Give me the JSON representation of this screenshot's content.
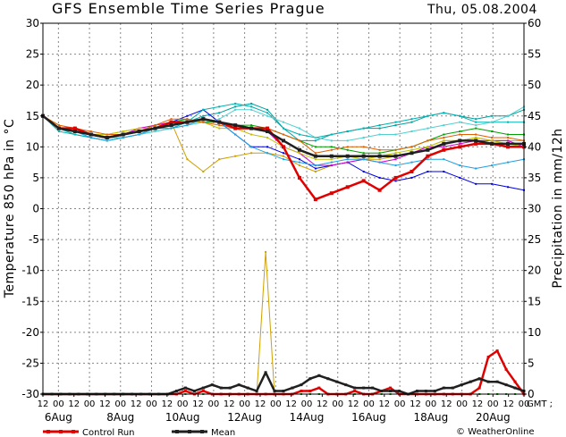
{
  "header": {
    "title": "GFS Ensemble Time Series Prague",
    "date": "Thu, 05.08.2004"
  },
  "chart_data": {
    "type": "line",
    "title": "GFS Ensemble Time Series Prague",
    "ylabel_left": "Temperature 850 hPa in °C",
    "ylabel_right": "Precipitation in mm/12h",
    "ylim_left": [
      -30,
      30
    ],
    "ylim_right": [
      0,
      60
    ],
    "yticks_left": [
      30,
      25,
      20,
      15,
      10,
      5,
      0,
      -5,
      -10,
      -15,
      -20,
      -25,
      -30
    ],
    "yticks_right": [
      60,
      55,
      50,
      45,
      40,
      35,
      30,
      25,
      20,
      15,
      10,
      5,
      0
    ],
    "x_hour_labels": [
      "12",
      "00",
      "12",
      "00",
      "12",
      "00",
      "12",
      "00",
      "12",
      "00",
      "12",
      "00",
      "12",
      "00",
      "12",
      "00",
      "12",
      "00",
      "12",
      "00",
      "12",
      "00",
      "12",
      "00",
      "12",
      "00",
      "12",
      "00",
      "12",
      "00",
      "12",
      "00"
    ],
    "x_end_label": "GMT ;",
    "x_date_labels": [
      "6Aug",
      "8Aug",
      "10Aug",
      "12Aug",
      "14Aug",
      "16Aug",
      "18Aug",
      "20Aug"
    ],
    "grid": true,
    "legend_position": "bottom-left",
    "credit": "© WeatherOnline",
    "temperature": {
      "control": {
        "name": "Control Run",
        "color": "#e00000",
        "values": [
          15,
          13,
          13,
          12,
          11.5,
          12,
          12.5,
          13,
          14,
          14,
          14.5,
          14,
          13,
          13,
          13,
          10,
          5,
          1.5,
          2.5,
          3.5,
          4.5,
          3,
          5,
          6,
          8.5,
          9.5,
          10,
          10.5,
          10.5,
          10,
          10
        ]
      },
      "mean": {
        "name": "Mean",
        "color": "#202020",
        "values": [
          15,
          13,
          12.5,
          12,
          11.5,
          12,
          12.5,
          13,
          13.5,
          14,
          14.5,
          14,
          13.5,
          13,
          12.5,
          11,
          9.5,
          8.5,
          8.5,
          8.5,
          8.5,
          8.5,
          8.5,
          9,
          9.5,
          10.5,
          11,
          11,
          10.5,
          10.5,
          10.5
        ]
      },
      "members": [
        {
          "color": "#00a0a0",
          "values": [
            15,
            13,
            12,
            11.5,
            11,
            11.5,
            12,
            13,
            13.5,
            14,
            15,
            15.5,
            16.5,
            17,
            16,
            13,
            11,
            11,
            12,
            12.5,
            13,
            13,
            13.5,
            14,
            15,
            15.5,
            15,
            14.5,
            15,
            15,
            16
          ]
        },
        {
          "color": "#d0a000",
          "values": [
            15,
            13,
            13,
            12,
            12,
            12.5,
            13,
            13.5,
            14,
            8,
            6,
            8,
            8.5,
            9,
            9,
            8.5,
            7,
            6,
            7,
            7.5,
            8,
            8,
            8.5,
            9,
            10,
            11,
            11,
            11.5,
            11,
            11,
            11
          ]
        },
        {
          "color": "#00a000",
          "values": [
            15,
            13,
            12.5,
            12,
            11.5,
            12,
            12.5,
            13,
            14,
            14.5,
            14,
            14,
            13.5,
            13.5,
            13,
            12,
            11,
            10,
            10,
            9.5,
            9,
            9,
            9.5,
            10,
            11,
            12,
            12.5,
            13,
            12.5,
            12,
            12
          ]
        },
        {
          "color": "#0000e0",
          "values": [
            15,
            13,
            12.5,
            12,
            11.5,
            12,
            12.5,
            13,
            14,
            15,
            16,
            14,
            12,
            10,
            10,
            9,
            8,
            6.5,
            7,
            7.5,
            6,
            5,
            4.5,
            5,
            6,
            6,
            5,
            4,
            4,
            3.5,
            3
          ]
        },
        {
          "color": "#d000d0",
          "values": [
            15,
            13,
            13,
            12,
            11.5,
            12,
            13,
            13.5,
            14,
            14,
            14.5,
            14,
            13,
            13,
            12.5,
            10,
            9,
            7,
            7,
            7.5,
            8,
            7.5,
            8,
            9,
            10,
            10,
            10.5,
            11,
            11,
            11,
            10
          ]
        },
        {
          "color": "#c0c000",
          "values": [
            15,
            13.5,
            13,
            12,
            12,
            12.5,
            13,
            13,
            14,
            14,
            14,
            13,
            13,
            12,
            11.5,
            10,
            9,
            8,
            8,
            8.5,
            8,
            8.5,
            9,
            9.5,
            10,
            11,
            11,
            11.5,
            11,
            10.5,
            10
          ]
        },
        {
          "color": "#00b0b0",
          "values": [
            15,
            12.5,
            12,
            11.5,
            11,
            11.5,
            12,
            12.5,
            13,
            14,
            16,
            16.5,
            17,
            16.5,
            15.5,
            13,
            12,
            11.5,
            12,
            12.5,
            13,
            13.5,
            14,
            14.5,
            15,
            15.5,
            15,
            14,
            14,
            14,
            14
          ]
        },
        {
          "color": "#50d0d0",
          "values": [
            15,
            13,
            12.5,
            12,
            11.5,
            11.5,
            12,
            12.5,
            13,
            13.5,
            14,
            14.5,
            16,
            16,
            15,
            14,
            13,
            11.5,
            11,
            11,
            11.5,
            12,
            12,
            12.5,
            13,
            13.5,
            14,
            13.5,
            14,
            15,
            16.5
          ]
        },
        {
          "color": "#e06000",
          "values": [
            15,
            13.5,
            13,
            12.5,
            12,
            12,
            12.5,
            13.5,
            14.5,
            14.5,
            14,
            13.5,
            13,
            13,
            13,
            12,
            11,
            9,
            9.5,
            10,
            10,
            9.5,
            9.5,
            10,
            11,
            11.5,
            12,
            12,
            11.5,
            11.5,
            11
          ]
        },
        {
          "color": "#20a0e0",
          "values": [
            15,
            13,
            12.5,
            11.5,
            11,
            11.5,
            12,
            13,
            13,
            13.5,
            14.5,
            14,
            12,
            10,
            9,
            8,
            7.5,
            7,
            7.5,
            8,
            8,
            7.5,
            7,
            7.5,
            8,
            8,
            7,
            6.5,
            7,
            7.5,
            8
          ]
        }
      ]
    },
    "precipitation": {
      "control": {
        "name": "Control Run",
        "color": "#e00000",
        "values": [
          0,
          0,
          0,
          0,
          0,
          0,
          0,
          0,
          0,
          0,
          0,
          0,
          0,
          0,
          0,
          0,
          0.5,
          0,
          0.5,
          0,
          0,
          0,
          0,
          0,
          0,
          0,
          0,
          0,
          0,
          0.5,
          0.5,
          1,
          0,
          0,
          0,
          0.5,
          0,
          0,
          0.5,
          1,
          0,
          0,
          0,
          0,
          0,
          0,
          0,
          0,
          0,
          1,
          6,
          7,
          4,
          2,
          0
        ]
      },
      "mean": {
        "name": "Mean",
        "color": "#202020",
        "values": [
          0,
          0,
          0,
          0,
          0,
          0,
          0,
          0,
          0,
          0,
          0,
          0,
          0,
          0,
          0,
          0.5,
          1,
          0.5,
          1,
          1.5,
          1,
          1,
          1.5,
          1,
          0.5,
          3.5,
          0.5,
          0.5,
          1,
          1.5,
          2.5,
          3,
          2.5,
          2,
          1.5,
          1,
          1,
          1,
          0.5,
          0.5,
          0.5,
          0,
          0.5,
          0.5,
          0.5,
          1,
          1,
          1.5,
          2,
          2.5,
          2,
          2,
          1.5,
          1,
          0.5
        ]
      },
      "members": [
        {
          "color": "#d0a000",
          "values": [
            0,
            0,
            0,
            0,
            0,
            0,
            0,
            0,
            0,
            0,
            0,
            0,
            0,
            0,
            0,
            0,
            0,
            0,
            0,
            0,
            0,
            0,
            0,
            0,
            0,
            23,
            0,
            0,
            0,
            0,
            0,
            0,
            0,
            0,
            0,
            0,
            0,
            0,
            0,
            0,
            0,
            0,
            0,
            0,
            0,
            0,
            0,
            0,
            0,
            0,
            0,
            0,
            0,
            0,
            0
          ]
        },
        {
          "color": "#00a0d0",
          "values": [
            0,
            0,
            0,
            0,
            0,
            0,
            0,
            0,
            0,
            0,
            0,
            0,
            0,
            0,
            0,
            0,
            0,
            0,
            0,
            0,
            0,
            0,
            0,
            0,
            0,
            0,
            0,
            0,
            0,
            0,
            0,
            0,
            0,
            0,
            0,
            0,
            0,
            0,
            0,
            0,
            0,
            0,
            0,
            0,
            0,
            0,
            0,
            0,
            0,
            0,
            0,
            0,
            0,
            0,
            0
          ]
        },
        {
          "color": "#d000d0",
          "values": [
            0,
            0,
            0,
            0,
            0,
            0,
            0,
            0,
            0,
            0,
            0,
            0,
            0,
            0,
            0,
            0,
            0,
            0,
            0,
            0,
            0,
            0,
            0,
            0,
            0,
            0,
            0,
            0,
            0,
            0,
            0,
            0,
            0,
            0,
            0,
            0,
            0,
            0,
            0,
            0,
            0,
            0,
            0,
            0,
            0,
            0,
            0,
            0,
            0,
            0,
            0,
            0,
            0,
            0,
            0
          ]
        },
        {
          "color": "#00a000",
          "values": [
            0,
            0,
            0,
            0,
            0,
            0,
            0,
            0,
            0,
            0,
            0,
            0,
            0,
            0,
            0,
            0,
            0,
            0,
            0,
            0,
            0,
            0,
            0,
            0,
            0,
            0,
            0,
            0,
            0,
            0,
            0,
            0,
            0,
            0,
            0,
            0,
            0,
            0,
            0,
            0,
            0,
            0,
            0,
            0,
            0,
            0,
            0,
            0,
            0,
            0,
            0,
            0,
            0,
            0,
            0
          ]
        }
      ]
    }
  },
  "legend": {
    "control_label": "Control Run",
    "mean_label": "Mean"
  },
  "credit": "© WeatherOnline"
}
